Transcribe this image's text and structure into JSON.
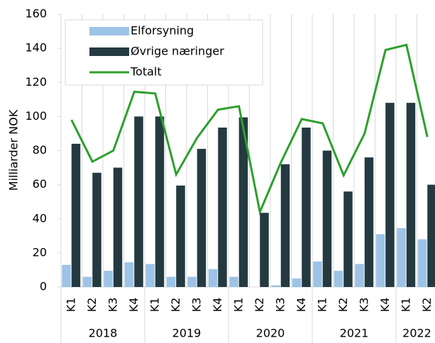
{
  "chart_data": {
    "type": "bar_line",
    "y_axis_label": "Milliarder NOK",
    "categories": [
      "K1",
      "K2",
      "K3",
      "K4",
      "K1",
      "K2",
      "K3",
      "K4",
      "K1",
      "K2",
      "K3",
      "K4",
      "K1",
      "K2",
      "K3",
      "K4",
      "K1",
      "K2"
    ],
    "x_groups": [
      "2018",
      "2019",
      "2020",
      "2021",
      "2022"
    ],
    "group_sizes": [
      4,
      4,
      4,
      4,
      2
    ],
    "series": [
      {
        "name": "Elforsyning",
        "type": "bar",
        "color": "#9dc3e6",
        "values": [
          13,
          6,
          9.5,
          14.5,
          13.5,
          6,
          6,
          10.5,
          6,
          0,
          1,
          5,
          15,
          9.5,
          13.5,
          31,
          34.5,
          28
        ]
      },
      {
        "name": "Øvrige næringer",
        "type": "bar",
        "color": "#243a40",
        "values": [
          84,
          67,
          70,
          100,
          100,
          59.5,
          81,
          93.5,
          99.5,
          43.5,
          72,
          93.5,
          80,
          56,
          76,
          108,
          108,
          60
        ]
      },
      {
        "name": "Totalt",
        "type": "line",
        "color": "#2ca02c",
        "values": [
          98,
          73.5,
          80,
          114.5,
          113.5,
          66,
          87.5,
          104,
          106,
          44,
          73,
          98.5,
          96,
          65.5,
          90,
          139,
          142,
          88
        ]
      }
    ],
    "ylim": [
      0,
      160
    ],
    "yticks": [
      0,
      20,
      40,
      60,
      80,
      100,
      120,
      140,
      160
    ],
    "legend": "upper-left"
  }
}
